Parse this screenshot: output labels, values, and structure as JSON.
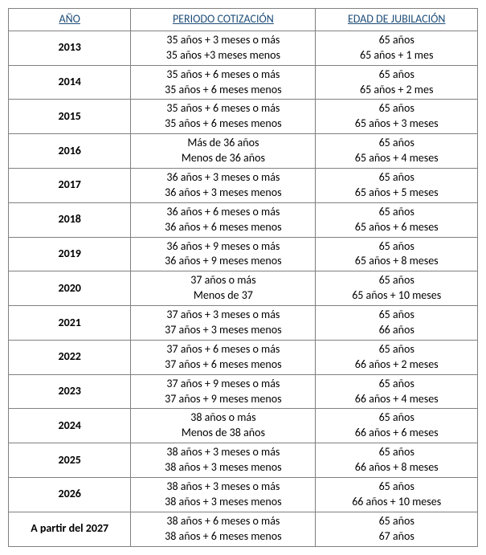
{
  "table": {
    "headers": {
      "year": "AÑO",
      "period": "PERIODO COTIZACIÓN",
      "age": "EDAD DE JUBILACIÓN"
    },
    "rows": [
      {
        "year": "2013",
        "period1": "35 años + 3 meses o más",
        "period2": "35 años +3 meses menos",
        "age1": "65 años",
        "age2": "65 años + 1 mes"
      },
      {
        "year": "2014",
        "period1": "35 años + 6 meses o más",
        "period2": "35 años + 6 meses menos",
        "age1": "65 años",
        "age2": "65 años + 2 mes"
      },
      {
        "year": "2015",
        "period1": "35 años + 6 meses o más",
        "period2": "35 años + 6 meses menos",
        "age1": "65 años",
        "age2": "65 años + 3 meses"
      },
      {
        "year": "2016",
        "period1": "Más de 36 años",
        "period2": "Menos de 36 años",
        "age1": "65 años",
        "age2": "65 años + 4 meses"
      },
      {
        "year": "2017",
        "period1": "36 años + 3 meses o más",
        "period2": "36 años + 3 meses menos",
        "age1": "65 años",
        "age2": "65 años + 5 meses"
      },
      {
        "year": "2018",
        "period1": "36 años + 6 meses o más",
        "period2": "36 años + 6 meses menos",
        "age1": "65 años",
        "age2": "65 años + 6 meses"
      },
      {
        "year": "2019",
        "period1": "36 años + 9 meses o más",
        "period2": "36 años + 9 meses menos",
        "age1": "65 años",
        "age2": "65 años + 8 meses"
      },
      {
        "year": "2020",
        "period1": "37 años o más",
        "period2": "Menos de 37",
        "age1": "65 años",
        "age2": "65 años + 10 meses"
      },
      {
        "year": "2021",
        "period1": "37 años + 3 meses o más",
        "period2": "37 años + 3 meses menos",
        "age1": "65 años",
        "age2": "66 años"
      },
      {
        "year": "2022",
        "period1": "37 años + 6 meses o más",
        "period2": "37 años + 6 meses menos",
        "age1": "65 años",
        "age2": "66 años + 2 meses"
      },
      {
        "year": "2023",
        "period1": "37 años + 9 meses o más",
        "period2": "37 años + 9 meses menos",
        "age1": "65 años",
        "age2": "66 años + 4 meses"
      },
      {
        "year": "2024",
        "period1": "38 años o más",
        "period2": "Menos de 38 años",
        "age1": "65 años",
        "age2": "66 años + 6 meses"
      },
      {
        "year": "2025",
        "period1": "38 años + 3 meses o más",
        "period2": "38 años + 3 meses menos",
        "age1": "65 años",
        "age2": "66 años + 8 meses"
      },
      {
        "year": "2026",
        "period1": "38 años + 3 meses o más",
        "period2": "38 años + 3 meses menos",
        "age1": "65 años",
        "age2": "66 años + 10 meses"
      },
      {
        "year": "A partir del 2027",
        "period1": "38 años + 6 meses o más",
        "period2": "38 años + 6 meses menos",
        "age1": "65 años",
        "age2": "67 años"
      }
    ]
  },
  "styles": {
    "header_color": "#1f4e79",
    "border_color": "#808080",
    "font_family": "Calibri",
    "font_size_pt": 11
  }
}
